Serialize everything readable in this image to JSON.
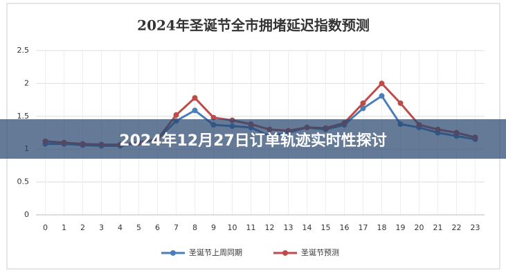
{
  "chart_data": {
    "type": "line",
    "title": "2024年圣诞节全市拥堵延迟指数预测",
    "categories": [
      "0",
      "1",
      "2",
      "3",
      "4",
      "5",
      "6",
      "7",
      "8",
      "9",
      "10",
      "11",
      "12",
      "13",
      "14",
      "15",
      "16",
      "17",
      "18",
      "19",
      "20",
      "21",
      "22",
      "23"
    ],
    "series": [
      {
        "name": "圣诞节上周同期",
        "color": "#4a7ebb",
        "values": [
          1.08,
          1.08,
          1.06,
          1.05,
          1.05,
          1.1,
          1.15,
          1.43,
          1.59,
          1.37,
          1.35,
          1.33,
          1.2,
          1.25,
          1.33,
          1.3,
          1.37,
          1.62,
          1.81,
          1.38,
          1.33,
          1.25,
          1.2,
          1.15
        ]
      },
      {
        "name": "圣诞节预测",
        "color": "#be4b48",
        "values": [
          1.12,
          1.1,
          1.08,
          1.07,
          1.07,
          1.1,
          1.15,
          1.52,
          1.78,
          1.48,
          1.44,
          1.38,
          1.3,
          1.28,
          1.33,
          1.32,
          1.4,
          1.7,
          2.0,
          1.7,
          1.37,
          1.3,
          1.25,
          1.18
        ]
      }
    ],
    "ylim": [
      0,
      2.5
    ],
    "yticks": [
      0,
      0.5,
      1,
      1.5,
      2,
      2.5
    ],
    "grid": true,
    "legend": "bottom"
  },
  "banner": {
    "title": "2024年12月27日订单轨迹实时性探讨"
  }
}
